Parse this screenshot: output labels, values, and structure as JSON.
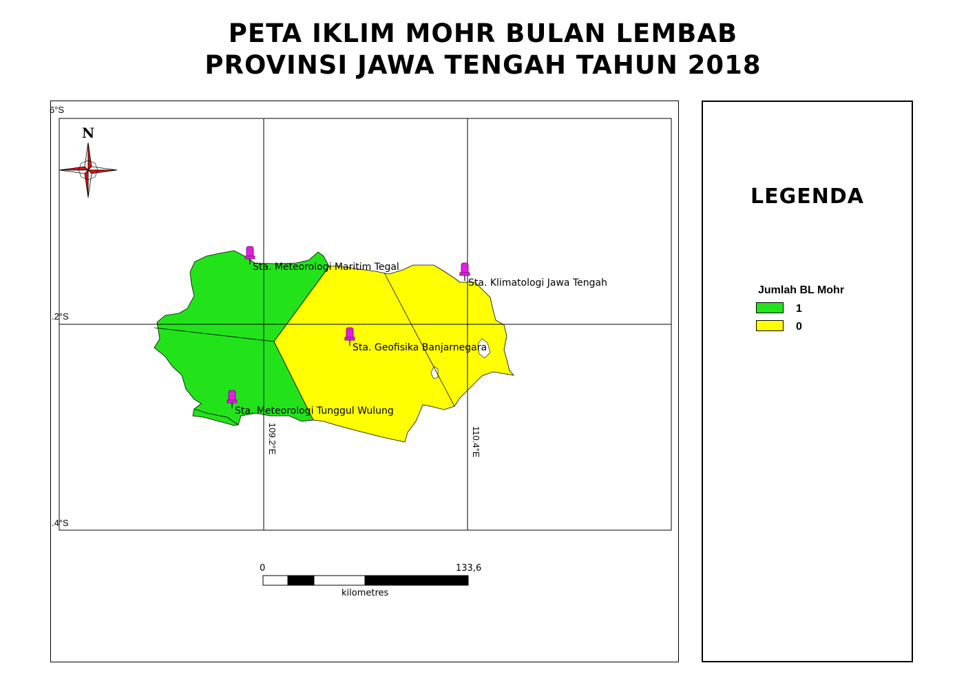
{
  "title": {
    "line1": "PETA IKLIM MOHR BULAN LEMBAB",
    "line2": "PROVINSI JAWA TENGAH TAHUN 2018"
  },
  "map": {
    "graticule": {
      "lat_top": "6°S",
      "lat_mid": ".2°S",
      "lat_bottom": ".4°S",
      "lon_left": "109.2°E",
      "lon_right": "110.4°E"
    },
    "north_arrow": {
      "label": "N",
      "icon": "north-arrow-compass-icon"
    },
    "stations": [
      {
        "name": "Sta. Meteorologi Maritim Tegal",
        "icon": "station-pin-icon"
      },
      {
        "name": "Sta. Klimatologi Jawa Tengah",
        "icon": "station-pin-icon"
      },
      {
        "name": "Sta. Geofisika Banjarnegara",
        "icon": "station-pin-icon"
      },
      {
        "name": "Sta. Meteorologi Tunggul Wulung",
        "icon": "station-pin-icon"
      }
    ],
    "zone_colors": {
      "bl_1": "#22e31a",
      "bl_0": "#ffff00",
      "pin": "#e020e0"
    },
    "scale_bar": {
      "start": "0",
      "end": "133,6",
      "unit": "kilometres"
    }
  },
  "legend": {
    "title": "LEGENDA",
    "subtitle": "Jumlah BL Mohr",
    "items": [
      {
        "label": "1",
        "color": "#22e31a"
      },
      {
        "label": "0",
        "color": "#ffff00"
      }
    ]
  }
}
